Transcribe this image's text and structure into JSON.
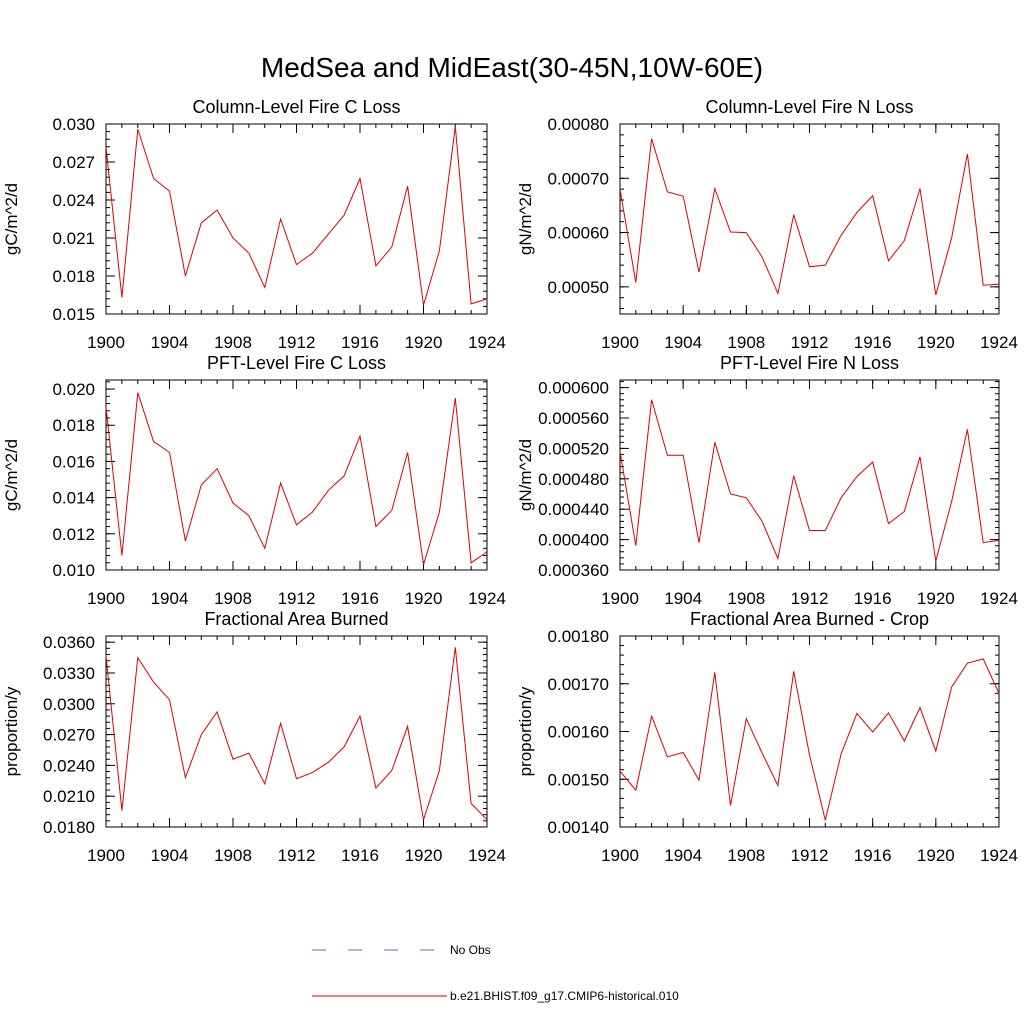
{
  "figure": {
    "title": "MedSea and MidEast(30-45N,10W-60E)"
  },
  "legend": {
    "items": [
      {
        "label": "No Obs",
        "color": "#6666cc",
        "style": "dashed"
      },
      {
        "label": "b.e21.BHIST.f09_g17.CMIP6-historical.010",
        "color": "#e00000",
        "style": "solid"
      }
    ]
  },
  "chart_data": [
    {
      "type": "line",
      "title": "Column-Level Fire C Loss",
      "ylabel": "gC/m^2/d",
      "xlabel": "",
      "xlim": [
        1900,
        1924
      ],
      "ylim": [
        0.015,
        0.03
      ],
      "x_ticks": [
        "1900",
        "1904",
        "1908",
        "1912",
        "1916",
        "1920",
        "1924"
      ],
      "y_ticks": [
        "0.015",
        "0.018",
        "0.021",
        "0.024",
        "0.027",
        "0.030"
      ],
      "grid": false,
      "x": [
        1900,
        1901,
        1902,
        1903,
        1904,
        1905,
        1906,
        1907,
        1908,
        1909,
        1910,
        1911,
        1912,
        1913,
        1914,
        1915,
        1916,
        1917,
        1918,
        1919,
        1920,
        1921,
        1922,
        1923,
        1924
      ],
      "series": [
        {
          "color": "#e00000",
          "values": [
            0.0282,
            0.0163,
            0.0296,
            0.0257,
            0.0247,
            0.018,
            0.0222,
            0.0232,
            0.021,
            0.0198,
            0.0171,
            0.0225,
            0.0189,
            0.0198,
            0.0213,
            0.0228,
            0.0257,
            0.0188,
            0.0203,
            0.0251,
            0.0157,
            0.02,
            0.0298,
            0.0158,
            0.0162
          ]
        }
      ]
    },
    {
      "type": "line",
      "title": "Column-Level Fire N Loss",
      "ylabel": "gN/m^2/d",
      "xlabel": "",
      "xlim": [
        1900,
        1924
      ],
      "ylim": [
        0.00045,
        0.0008
      ],
      "x_ticks": [
        "1900",
        "1904",
        "1908",
        "1912",
        "1916",
        "1920",
        "1924"
      ],
      "y_ticks": [
        "0.00050",
        "0.00060",
        "0.00070",
        "0.00080"
      ],
      "grid": false,
      "x": [
        1900,
        1901,
        1902,
        1903,
        1904,
        1905,
        1906,
        1907,
        1908,
        1909,
        1910,
        1911,
        1912,
        1913,
        1914,
        1915,
        1916,
        1917,
        1918,
        1919,
        1920,
        1921,
        1922,
        1923,
        1924
      ],
      "series": [
        {
          "color": "#e00000",
          "values": [
            0.00068,
            0.000508,
            0.000773,
            0.000675,
            0.000667,
            0.000527,
            0.000681,
            0.000601,
            0.0006,
            0.000555,
            0.000488,
            0.000633,
            0.000537,
            0.00054,
            0.000595,
            0.000637,
            0.000668,
            0.000548,
            0.000585,
            0.000681,
            0.000485,
            0.00059,
            0.000745,
            0.000503,
            0.000505
          ]
        }
      ]
    },
    {
      "type": "line",
      "title": "PFT-Level Fire C Loss",
      "ylabel": "gC/m^2/d",
      "xlabel": "",
      "xlim": [
        1900,
        1924
      ],
      "ylim": [
        0.01,
        0.0205
      ],
      "x_ticks": [
        "1900",
        "1904",
        "1908",
        "1912",
        "1916",
        "1920",
        "1924"
      ],
      "y_ticks": [
        "0.010",
        "0.012",
        "0.014",
        "0.016",
        "0.018",
        "0.020"
      ],
      "grid": false,
      "x": [
        1900,
        1901,
        1902,
        1903,
        1904,
        1905,
        1906,
        1907,
        1908,
        1909,
        1910,
        1911,
        1912,
        1913,
        1914,
        1915,
        1916,
        1917,
        1918,
        1919,
        1920,
        1921,
        1922,
        1923,
        1924
      ],
      "series": [
        {
          "color": "#e00000",
          "values": [
            0.019,
            0.0108,
            0.0198,
            0.0171,
            0.0165,
            0.0116,
            0.0147,
            0.0156,
            0.0137,
            0.013,
            0.0112,
            0.0148,
            0.0125,
            0.0132,
            0.0144,
            0.0152,
            0.0174,
            0.0124,
            0.0133,
            0.0165,
            0.0103,
            0.0132,
            0.0195,
            0.0104,
            0.011
          ]
        }
      ]
    },
    {
      "type": "line",
      "title": "PFT-Level Fire N Loss",
      "ylabel": "gN/m^2/d",
      "xlabel": "",
      "xlim": [
        1900,
        1924
      ],
      "ylim": [
        0.00036,
        0.00061
      ],
      "x_ticks": [
        "1900",
        "1904",
        "1908",
        "1912",
        "1916",
        "1920",
        "1924"
      ],
      "y_ticks": [
        "0.000360",
        "0.000400",
        "0.000440",
        "0.000480",
        "0.000520",
        "0.000560",
        "0.000600"
      ],
      "grid": false,
      "x": [
        1900,
        1901,
        1902,
        1903,
        1904,
        1905,
        1906,
        1907,
        1908,
        1909,
        1910,
        1911,
        1912,
        1913,
        1914,
        1915,
        1916,
        1917,
        1918,
        1919,
        1920,
        1921,
        1922,
        1923,
        1924
      ],
      "series": [
        {
          "color": "#e00000",
          "values": [
            0.000516,
            0.000392,
            0.000584,
            0.000511,
            0.000511,
            0.000396,
            0.000528,
            0.00046,
            0.000455,
            0.000424,
            0.000375,
            0.000484,
            0.000412,
            0.000412,
            0.000455,
            0.000483,
            0.000502,
            0.000421,
            0.000437,
            0.000509,
            0.000372,
            0.00045,
            0.000545,
            0.000396,
            0.000399
          ]
        }
      ]
    },
    {
      "type": "line",
      "title": "Fractional Area Burned",
      "ylabel": "proportion/y",
      "xlabel": "",
      "xlim": [
        1900,
        1924
      ],
      "ylim": [
        0.018,
        0.0366
      ],
      "x_ticks": [
        "1900",
        "1904",
        "1908",
        "1912",
        "1916",
        "1920",
        "1924"
      ],
      "y_ticks": [
        "0.0180",
        "0.0210",
        "0.0240",
        "0.0270",
        "0.0300",
        "0.0330",
        "0.0360"
      ],
      "grid": false,
      "x": [
        1900,
        1901,
        1902,
        1903,
        1904,
        1905,
        1906,
        1907,
        1908,
        1909,
        1910,
        1911,
        1912,
        1913,
        1914,
        1915,
        1916,
        1917,
        1918,
        1919,
        1920,
        1921,
        1922,
        1923,
        1924
      ],
      "series": [
        {
          "color": "#e00000",
          "values": [
            0.0347,
            0.0196,
            0.0345,
            0.0321,
            0.0304,
            0.0228,
            0.027,
            0.0292,
            0.0246,
            0.0252,
            0.0222,
            0.0281,
            0.0227,
            0.0233,
            0.0243,
            0.0258,
            0.0288,
            0.0218,
            0.0235,
            0.0278,
            0.0187,
            0.0235,
            0.0355,
            0.0203,
            0.0187
          ]
        }
      ]
    },
    {
      "type": "line",
      "title": "Fractional Area Burned - Crop",
      "ylabel": "proportion/y",
      "xlabel": "",
      "xlim": [
        1900,
        1924
      ],
      "ylim": [
        0.0014,
        0.0018
      ],
      "x_ticks": [
        "1900",
        "1904",
        "1908",
        "1912",
        "1916",
        "1920",
        "1924"
      ],
      "y_ticks": [
        "0.00140",
        "0.00150",
        "0.00160",
        "0.00170",
        "0.00180"
      ],
      "grid": false,
      "x": [
        1900,
        1901,
        1902,
        1903,
        1904,
        1905,
        1906,
        1907,
        1908,
        1909,
        1910,
        1911,
        1912,
        1913,
        1914,
        1915,
        1916,
        1917,
        1918,
        1919,
        1920,
        1921,
        1922,
        1923,
        1924
      ],
      "series": [
        {
          "color": "#e00000",
          "values": [
            0.001517,
            0.001477,
            0.001632,
            0.001547,
            0.001556,
            0.001498,
            0.001724,
            0.001445,
            0.001627,
            0.001555,
            0.001487,
            0.001726,
            0.001551,
            0.001414,
            0.001553,
            0.001638,
            0.001599,
            0.001639,
            0.00158,
            0.00165,
            0.001559,
            0.001693,
            0.001743,
            0.001752,
            0.00168
          ]
        }
      ]
    }
  ]
}
